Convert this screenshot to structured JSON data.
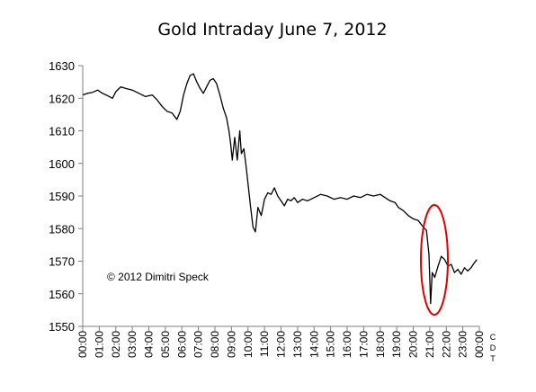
{
  "chart_data": {
    "type": "line",
    "title": "Gold Intraday June 7, 2012",
    "xlabel": "",
    "ylabel": "",
    "unit_label": "CDT",
    "annotation": "© 2012 Dimitri Speck",
    "highlight": "red ellipse around the sharp drop near 21:00",
    "grid": false,
    "ylim": [
      1550,
      1630
    ],
    "yticks": [
      1550,
      1560,
      1570,
      1580,
      1590,
      1600,
      1610,
      1620,
      1630
    ],
    "xticks": [
      "00:00",
      "01:00",
      "02:00",
      "03:00",
      "04:00",
      "05:00",
      "06:00",
      "07:00",
      "08:00",
      "09:00",
      "10:00",
      "11:00",
      "12:00",
      "13:00",
      "14:00",
      "15:00",
      "16:00",
      "17:00",
      "18:00",
      "19:00",
      "20:00",
      "21:00",
      "22:00",
      "23:00",
      "00:00"
    ],
    "series": [
      {
        "name": "",
        "color": "#000000",
        "points": [
          [
            0.0,
            1621.0
          ],
          [
            0.3,
            1621.5
          ],
          [
            0.6,
            1621.8
          ],
          [
            0.9,
            1622.5
          ],
          [
            1.2,
            1621.5
          ],
          [
            1.5,
            1620.8
          ],
          [
            1.8,
            1620.0
          ],
          [
            2.0,
            1622.0
          ],
          [
            2.3,
            1623.5
          ],
          [
            2.6,
            1623.0
          ],
          [
            3.0,
            1622.5
          ],
          [
            3.4,
            1621.5
          ],
          [
            3.8,
            1620.5
          ],
          [
            4.2,
            1621.0
          ],
          [
            4.5,
            1619.5
          ],
          [
            4.8,
            1617.5
          ],
          [
            5.1,
            1616.0
          ],
          [
            5.4,
            1615.5
          ],
          [
            5.7,
            1613.5
          ],
          [
            5.9,
            1616.0
          ],
          [
            6.1,
            1621.0
          ],
          [
            6.3,
            1624.5
          ],
          [
            6.5,
            1627.0
          ],
          [
            6.7,
            1627.5
          ],
          [
            6.9,
            1625.0
          ],
          [
            7.1,
            1623.0
          ],
          [
            7.3,
            1621.5
          ],
          [
            7.5,
            1623.5
          ],
          [
            7.7,
            1625.5
          ],
          [
            7.9,
            1626.0
          ],
          [
            8.1,
            1624.5
          ],
          [
            8.3,
            1621.0
          ],
          [
            8.5,
            1617.0
          ],
          [
            8.7,
            1614.0
          ],
          [
            8.85,
            1610.0
          ],
          [
            8.95,
            1606.0
          ],
          [
            9.05,
            1601.0
          ],
          [
            9.2,
            1608.0
          ],
          [
            9.35,
            1601.0
          ],
          [
            9.5,
            1610.0
          ],
          [
            9.6,
            1603.0
          ],
          [
            9.75,
            1604.5
          ],
          [
            9.9,
            1598.5
          ],
          [
            10.05,
            1591.5
          ],
          [
            10.15,
            1587.0
          ],
          [
            10.3,
            1580.5
          ],
          [
            10.45,
            1579.0
          ],
          [
            10.6,
            1586.5
          ],
          [
            10.8,
            1584.0
          ],
          [
            11.0,
            1589.0
          ],
          [
            11.2,
            1591.0
          ],
          [
            11.4,
            1590.5
          ],
          [
            11.6,
            1592.5
          ],
          [
            11.8,
            1590.0
          ],
          [
            12.0,
            1588.5
          ],
          [
            12.2,
            1587.0
          ],
          [
            12.4,
            1589.0
          ],
          [
            12.6,
            1588.5
          ],
          [
            12.8,
            1589.5
          ],
          [
            13.0,
            1588.0
          ],
          [
            13.3,
            1589.0
          ],
          [
            13.6,
            1588.5
          ],
          [
            14.0,
            1589.5
          ],
          [
            14.4,
            1590.5
          ],
          [
            14.8,
            1590.0
          ],
          [
            15.2,
            1589.0
          ],
          [
            15.6,
            1589.5
          ],
          [
            16.0,
            1589.0
          ],
          [
            16.4,
            1590.0
          ],
          [
            16.8,
            1589.5
          ],
          [
            17.2,
            1590.5
          ],
          [
            17.6,
            1590.0
          ],
          [
            18.0,
            1590.5
          ],
          [
            18.3,
            1589.5
          ],
          [
            18.6,
            1588.5
          ],
          [
            18.9,
            1588.0
          ],
          [
            19.1,
            1586.5
          ],
          [
            19.4,
            1585.5
          ],
          [
            19.7,
            1584.0
          ],
          [
            20.0,
            1583.0
          ],
          [
            20.3,
            1582.5
          ],
          [
            20.6,
            1580.5
          ],
          [
            20.8,
            1579.5
          ],
          [
            20.95,
            1572.0
          ],
          [
            21.05,
            1557.0
          ],
          [
            21.15,
            1566.5
          ],
          [
            21.3,
            1565.0
          ],
          [
            21.5,
            1568.5
          ],
          [
            21.7,
            1571.5
          ],
          [
            21.9,
            1570.5
          ],
          [
            22.1,
            1568.5
          ],
          [
            22.3,
            1569.0
          ],
          [
            22.5,
            1566.5
          ],
          [
            22.7,
            1567.5
          ],
          [
            22.9,
            1566.0
          ],
          [
            23.1,
            1568.0
          ],
          [
            23.3,
            1567.0
          ],
          [
            23.5,
            1568.0
          ],
          [
            23.7,
            1569.5
          ],
          [
            23.85,
            1570.5
          ]
        ]
      }
    ]
  }
}
